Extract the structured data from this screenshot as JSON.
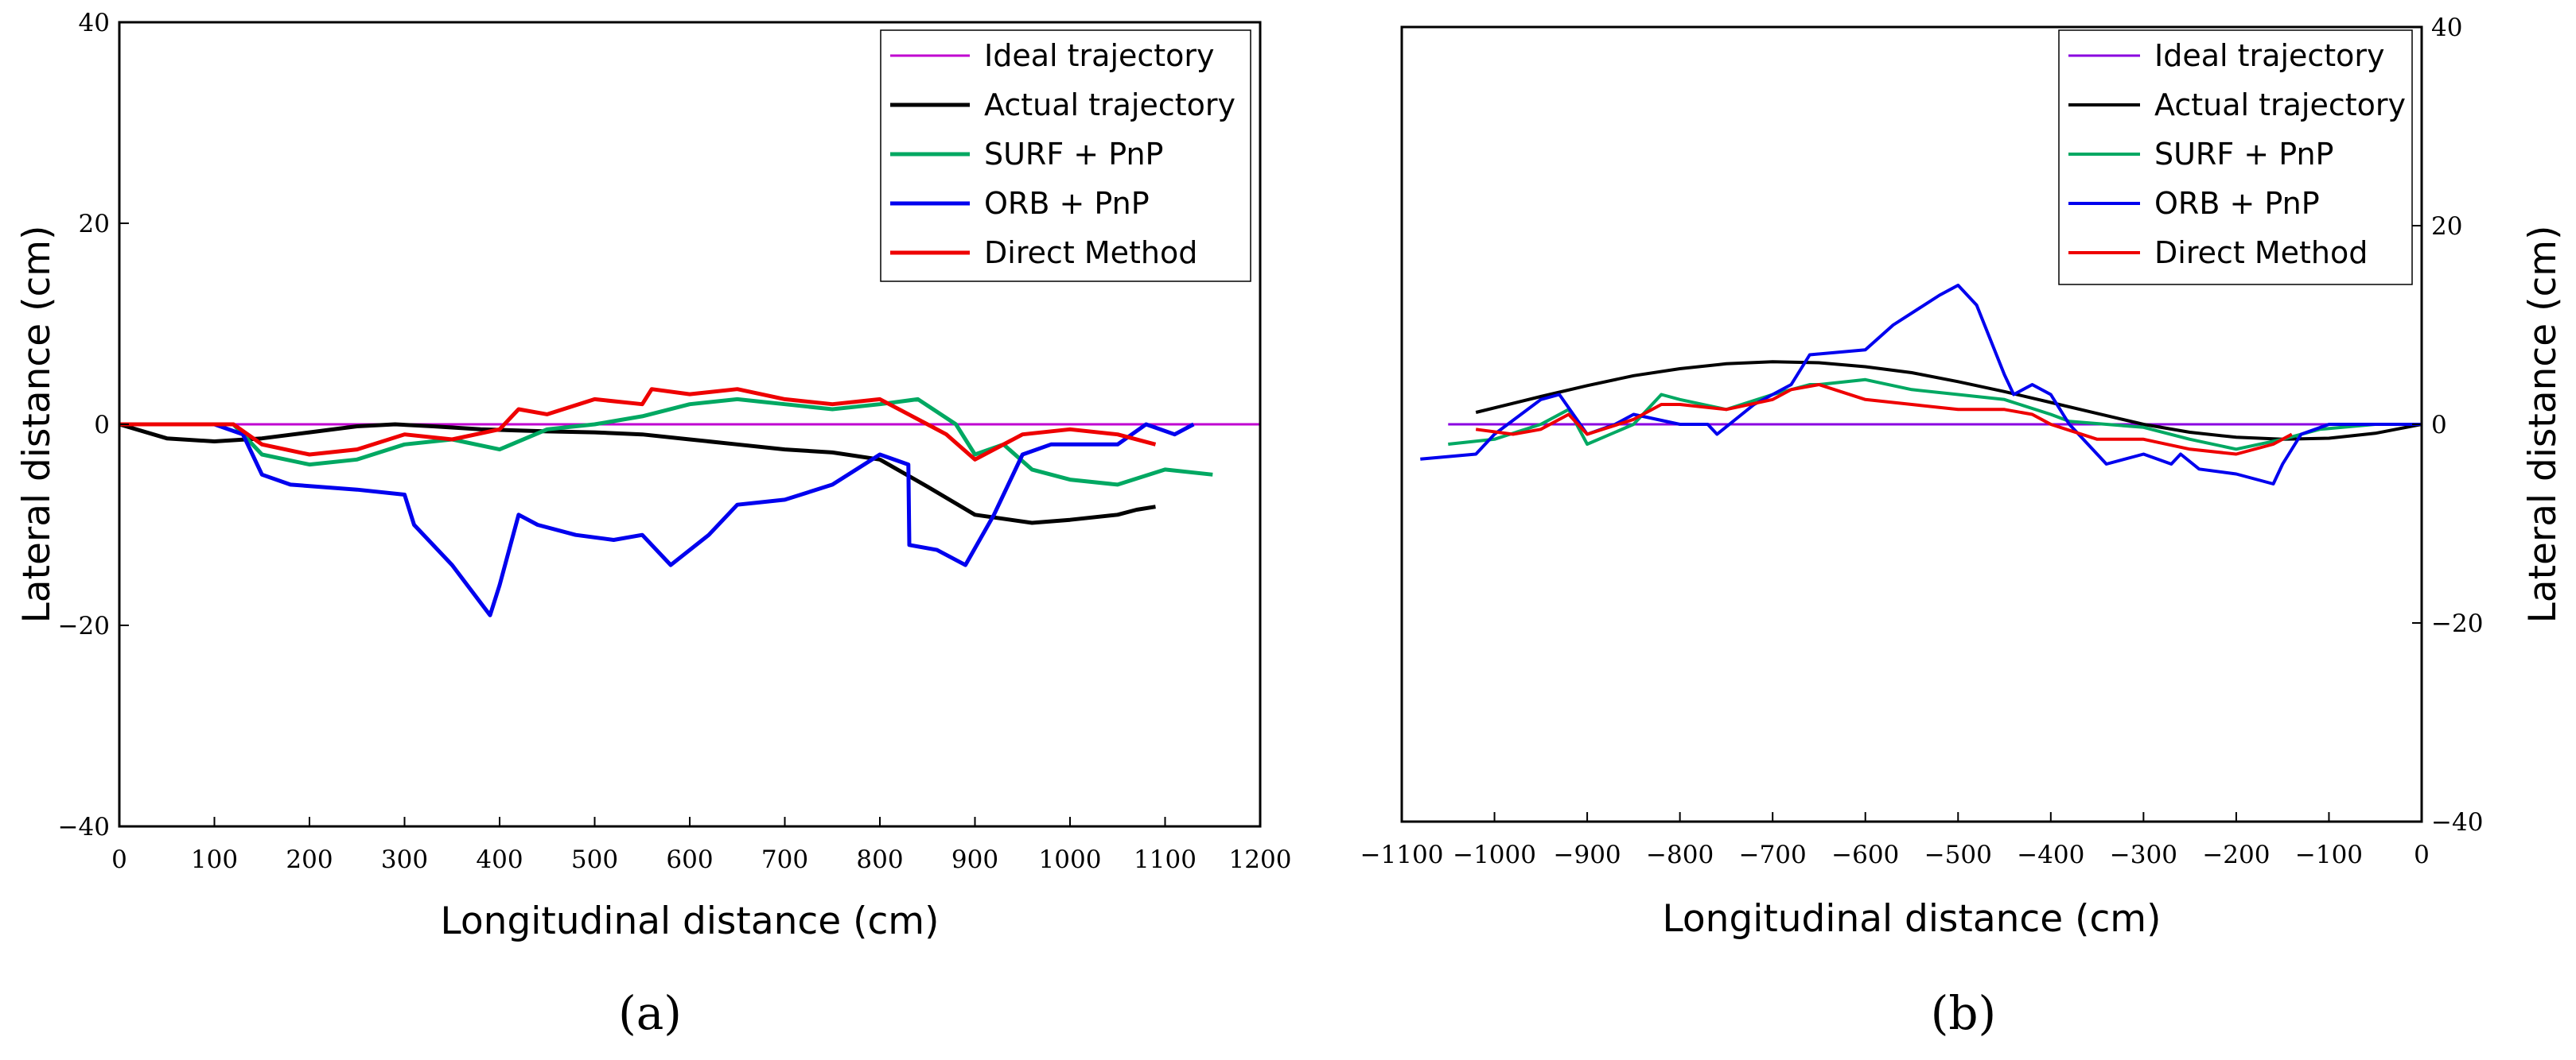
{
  "chart_data": [
    {
      "type": "line",
      "panel_label": "(a)",
      "xlabel": "Longitudinal distance (cm)",
      "ylabel": "Lateral distance (cm)",
      "xlim": [
        0,
        1200
      ],
      "ylim": [
        -40,
        40
      ],
      "xticks": [
        0,
        100,
        200,
        300,
        400,
        500,
        600,
        700,
        800,
        900,
        1000,
        1100,
        1200
      ],
      "yticks": [
        -40,
        -20,
        0,
        20,
        40
      ],
      "ytick_labels": [
        "−40",
        "−20",
        "0",
        "20",
        "40"
      ],
      "legend_position": "top-right",
      "series": [
        {
          "name": "Ideal trajectory",
          "color": "#c000d0",
          "x": [
            0,
            1200
          ],
          "y": [
            0,
            0
          ]
        },
        {
          "name": "Actual trajectory",
          "color": "#000000",
          "x": [
            0,
            50,
            100,
            150,
            200,
            250,
            290,
            330,
            380,
            450,
            500,
            550,
            600,
            650,
            700,
            750,
            800,
            850,
            900,
            960,
            1000,
            1050,
            1070,
            1090
          ],
          "y": [
            0,
            -1.4,
            -1.7,
            -1.4,
            -0.8,
            -0.2,
            0,
            -0.2,
            -0.5,
            -0.7,
            -0.8,
            -1.0,
            -1.5,
            -2.0,
            -2.5,
            -2.8,
            -3.5,
            -6.2,
            -9.0,
            -9.8,
            -9.5,
            -9.0,
            -8.5,
            -8.2
          ]
        },
        {
          "name": "SURF + PnP",
          "color": "#00a862",
          "x": [
            0,
            120,
            150,
            200,
            250,
            300,
            350,
            400,
            450,
            500,
            550,
            600,
            650,
            700,
            750,
            800,
            840,
            880,
            900,
            930,
            960,
            1000,
            1050,
            1100,
            1150
          ],
          "y": [
            0,
            0,
            -3,
            -4,
            -3.5,
            -2,
            -1.5,
            -2.5,
            -0.5,
            0,
            0.8,
            2,
            2.5,
            2,
            1.5,
            2,
            2.5,
            0,
            -3,
            -2,
            -4.5,
            -5.5,
            -6,
            -4.5,
            -5
          ]
        },
        {
          "name": "ORB + PnP",
          "color": "#0000ee",
          "x": [
            0,
            100,
            130,
            150,
            180,
            250,
            300,
            310,
            350,
            390,
            400,
            420,
            440,
            480,
            520,
            550,
            580,
            620,
            650,
            700,
            750,
            800,
            830,
            831,
            860,
            890,
            920,
            950,
            980,
            1050,
            1080,
            1110,
            1130
          ],
          "y": [
            0,
            0,
            -1,
            -5,
            -6,
            -6.5,
            -7,
            -10,
            -14,
            -19,
            -16,
            -9,
            -10,
            -11,
            -11.5,
            -11,
            -14,
            -11,
            -8,
            -7.5,
            -6,
            -3,
            -4,
            -12,
            -12.5,
            -14,
            -9,
            -3,
            -2,
            -2,
            0,
            -1,
            0
          ]
        },
        {
          "name": "Direct Method",
          "color": "#ee0000",
          "x": [
            0,
            120,
            150,
            200,
            250,
            300,
            350,
            400,
            420,
            450,
            500,
            550,
            560,
            600,
            650,
            700,
            750,
            800,
            850,
            870,
            900,
            950,
            1000,
            1050,
            1090
          ],
          "y": [
            0,
            0,
            -2,
            -3,
            -2.5,
            -1,
            -1.5,
            -0.5,
            1.5,
            1,
            2.5,
            2,
            3.5,
            3,
            3.5,
            2.5,
            2,
            2.5,
            0,
            -1,
            -3.5,
            -1,
            -0.5,
            -1,
            -2
          ]
        }
      ]
    },
    {
      "type": "line",
      "panel_label": "(b)",
      "xlabel": "Longitudinal distance (cm)",
      "ylabel": "Lateral distance (cm)",
      "xlim": [
        -1100,
        0
      ],
      "ylim": [
        -40,
        40
      ],
      "xticks": [
        -1100,
        -1000,
        -900,
        -800,
        -700,
        -600,
        -500,
        -400,
        -300,
        -200,
        -100,
        0
      ],
      "xtick_labels": [
        "−1100",
        "−1000",
        "−900",
        "−800",
        "−700",
        "−600",
        "−500",
        "−400",
        "−300",
        "−200",
        "−100",
        "0"
      ],
      "yticks": [
        -40,
        -20,
        0,
        20,
        40
      ],
      "ytick_labels": [
        "−40",
        "−20",
        "0",
        "20",
        "40"
      ],
      "y_axis_side": "right",
      "legend_position": "top-right",
      "series": [
        {
          "name": "Ideal trajectory",
          "color": "#8a00e0",
          "x": [
            -1050,
            0
          ],
          "y": [
            0,
            0
          ]
        },
        {
          "name": "Actual trajectory",
          "color": "#000000",
          "x": [
            -1020,
            -950,
            -900,
            -850,
            -800,
            -750,
            -700,
            -650,
            -600,
            -550,
            -500,
            -450,
            -400,
            -350,
            -300,
            -250,
            -200,
            -150,
            -100,
            -50,
            0
          ],
          "y": [
            1.2,
            2.8,
            3.9,
            4.9,
            5.6,
            6.1,
            6.3,
            6.2,
            5.8,
            5.2,
            4.3,
            3.3,
            2.2,
            1.1,
            0,
            -0.8,
            -1.3,
            -1.5,
            -1.4,
            -0.9,
            0
          ]
        },
        {
          "name": "SURF + PnP",
          "color": "#00a862",
          "x": [
            -1050,
            -1000,
            -950,
            -920,
            -900,
            -850,
            -820,
            -800,
            -750,
            -700,
            -660,
            -650,
            -600,
            -550,
            -500,
            -450,
            -400,
            -380,
            -300,
            -250,
            -200,
            -150,
            -110,
            -50,
            0
          ],
          "y": [
            -2,
            -1.5,
            0,
            1.5,
            -2,
            0,
            3,
            2.5,
            1.5,
            3,
            4,
            4,
            4.5,
            3.5,
            3,
            2.5,
            1,
            0.3,
            -0.3,
            -1.5,
            -2.5,
            -1.5,
            -0.5,
            0,
            0
          ]
        },
        {
          "name": "ORB + PnP",
          "color": "#0000ee",
          "x": [
            -1080,
            -1020,
            -1000,
            -950,
            -930,
            -900,
            -870,
            -850,
            -800,
            -770,
            -760,
            -720,
            -680,
            -660,
            -600,
            -570,
            -520,
            -500,
            -480,
            -450,
            -440,
            -420,
            -400,
            -380,
            -370,
            -340,
            -300,
            -270,
            -260,
            -240,
            -200,
            -160,
            -150,
            -130,
            -100,
            -50,
            0
          ],
          "y": [
            -3.5,
            -3,
            -1,
            2.5,
            3,
            -1,
            0,
            1,
            0,
            0,
            -1,
            2,
            4,
            7,
            7.5,
            10,
            13,
            14,
            12,
            5,
            3,
            4,
            3,
            0,
            -1,
            -4,
            -3,
            -4,
            -3,
            -4.5,
            -5,
            -6,
            -4,
            -1,
            0,
            0,
            0
          ]
        },
        {
          "name": "Direct Method",
          "color": "#ee0000",
          "x": [
            -1020,
            -980,
            -950,
            -920,
            -900,
            -850,
            -820,
            -800,
            -750,
            -700,
            -680,
            -650,
            -600,
            -550,
            -500,
            -450,
            -420,
            -400,
            -350,
            -300,
            -250,
            -200,
            -160,
            -140
          ],
          "y": [
            -0.5,
            -1,
            -0.5,
            1,
            -1,
            0.5,
            2,
            2,
            1.5,
            2.5,
            3.5,
            4,
            2.5,
            2,
            1.5,
            1.5,
            1,
            0,
            -1.5,
            -1.5,
            -2.5,
            -3,
            -2,
            -1
          ]
        }
      ]
    }
  ]
}
